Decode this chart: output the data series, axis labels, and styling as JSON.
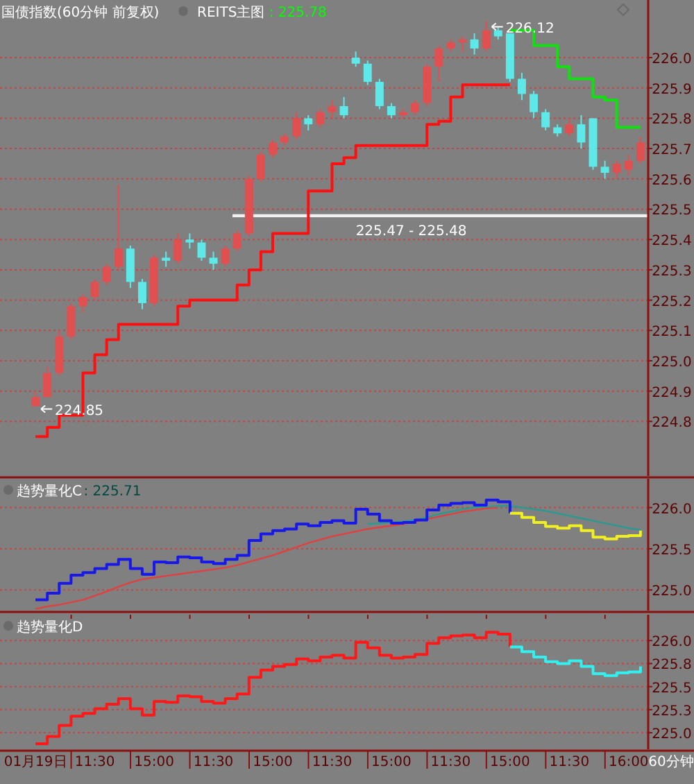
{
  "chart_data": [
    {
      "type": "candlestick",
      "title": "国债指数(60分钟 前复权)",
      "subtitle": "REITS主图",
      "categories": [
        null,
        null,
        null,
        null,
        null,
        null,
        null,
        null,
        null,
        null,
        null,
        null,
        null,
        null,
        null,
        null,
        null,
        null,
        null,
        null,
        null,
        null,
        null,
        null,
        null,
        null,
        null,
        null,
        null,
        null,
        null,
        null,
        null,
        null,
        null,
        null,
        null,
        null,
        null,
        null,
        null,
        null,
        null,
        null,
        null,
        null,
        null,
        null,
        null,
        null,
        null,
        null
      ],
      "ohlc": [
        [
          224.85,
          224.9,
          224.85,
          224.88
        ],
        [
          224.88,
          224.98,
          224.88,
          224.96
        ],
        [
          224.96,
          225.1,
          224.95,
          225.08
        ],
        [
          225.08,
          225.19,
          225.07,
          225.18
        ],
        [
          225.18,
          225.22,
          225.16,
          225.21
        ],
        [
          225.21,
          225.27,
          225.2,
          225.26
        ],
        [
          225.26,
          225.32,
          225.25,
          225.31
        ],
        [
          225.31,
          225.58,
          225.3,
          225.37
        ],
        [
          225.37,
          225.38,
          225.24,
          225.26
        ],
        [
          225.26,
          225.27,
          225.17,
          225.19
        ],
        [
          225.19,
          225.35,
          225.18,
          225.34
        ],
        [
          225.34,
          225.36,
          225.31,
          225.33
        ],
        [
          225.33,
          225.42,
          225.32,
          225.4
        ],
        [
          225.4,
          225.42,
          225.37,
          225.39
        ],
        [
          225.39,
          225.4,
          225.33,
          225.34
        ],
        [
          225.34,
          225.36,
          225.3,
          225.32
        ],
        [
          225.32,
          225.38,
          225.31,
          225.37
        ],
        [
          225.37,
          225.43,
          225.36,
          225.42
        ],
        [
          225.42,
          225.61,
          225.41,
          225.6
        ],
        [
          225.6,
          225.69,
          225.59,
          225.68
        ],
        [
          225.68,
          225.73,
          225.67,
          225.72
        ],
        [
          225.72,
          225.75,
          225.71,
          225.74
        ],
        [
          225.74,
          225.82,
          225.73,
          225.8
        ],
        [
          225.8,
          225.81,
          225.76,
          225.78
        ],
        [
          225.78,
          225.83,
          225.77,
          225.82
        ],
        [
          225.82,
          225.86,
          225.8,
          225.84
        ],
        [
          225.84,
          225.87,
          225.8,
          225.81
        ],
        [
          226.0,
          226.02,
          225.97,
          225.98
        ],
        [
          225.98,
          225.99,
          225.91,
          225.92
        ],
        [
          225.92,
          225.93,
          225.83,
          225.84
        ],
        [
          225.84,
          225.85,
          225.8,
          225.81
        ],
        [
          225.81,
          225.83,
          225.8,
          225.82
        ],
        [
          225.82,
          225.86,
          225.81,
          225.85
        ],
        [
          225.85,
          225.98,
          225.84,
          225.97
        ],
        [
          225.97,
          226.04,
          225.92,
          226.03
        ],
        [
          226.03,
          226.06,
          226.02,
          226.05
        ],
        [
          226.05,
          226.07,
          226.02,
          226.06
        ],
        [
          226.06,
          226.08,
          226.01,
          226.03
        ],
        [
          226.03,
          226.12,
          226.02,
          226.09
        ],
        [
          226.09,
          226.1,
          226.06,
          226.07
        ],
        [
          226.08,
          226.08,
          225.92,
          225.93
        ],
        [
          225.93,
          225.95,
          225.86,
          225.88
        ],
        [
          225.88,
          225.89,
          225.8,
          225.82
        ],
        [
          225.82,
          225.83,
          225.76,
          225.77
        ],
        [
          225.77,
          225.78,
          225.74,
          225.75
        ],
        [
          225.75,
          225.8,
          225.74,
          225.78
        ],
        [
          225.78,
          225.81,
          225.7,
          225.72
        ],
        [
          225.8,
          225.8,
          225.63,
          225.64
        ],
        [
          225.64,
          225.66,
          225.6,
          225.62
        ],
        [
          225.62,
          225.66,
          225.6,
          225.65
        ],
        [
          225.63,
          225.68,
          225.61,
          225.66
        ],
        [
          225.66,
          225.74,
          225.65,
          225.72
        ]
      ],
      "colors": [
        "#e05050",
        "#e05050",
        "#e05050",
        "#e05050",
        "#e05050",
        "#e05050",
        "#e05050",
        "#e05050",
        "#5ee8e8",
        "#5ee8e8",
        "#e05050",
        "#5ee8e8",
        "#e05050",
        "#5ee8e8",
        "#5ee8e8",
        "#5ee8e8",
        "#e05050",
        "#e05050",
        "#e05050",
        "#e05050",
        "#e05050",
        "#e05050",
        "#e05050",
        "#5ee8e8",
        "#e05050",
        "#e05050",
        "#5ee8e8",
        "#5ee8e8",
        "#5ee8e8",
        "#5ee8e8",
        "#5ee8e8",
        "#e05050",
        "#e05050",
        "#e05050",
        "#e05050",
        "#e05050",
        "#e05050",
        "#5ee8e8",
        "#e05050",
        "#5ee8e8",
        "#5ee8e8",
        "#5ee8e8",
        "#5ee8e8",
        "#5ee8e8",
        "#5ee8e8",
        "#e05050",
        "#5ee8e8",
        "#5ee8e8",
        "#5ee8e8",
        "#e05050",
        "#e05050",
        "#e05050"
      ],
      "series": [
        {
          "type": "step",
          "color": "#ff1010",
          "values": [
            224.75,
            224.78,
            224.82,
            224.82,
            224.96,
            225.02,
            225.07,
            225.12,
            225.12,
            225.12,
            225.12,
            225.12,
            225.18,
            225.2,
            225.2,
            225.2,
            225.2,
            225.25,
            225.3,
            225.36,
            225.42,
            225.42,
            225.42,
            225.56,
            225.56,
            225.65,
            225.67,
            225.71,
            225.71,
            225.71,
            225.71,
            225.71,
            225.71,
            225.78,
            225.79,
            225.87,
            225.91,
            225.91,
            225.91,
            225.91,
            225.91,
            null,
            null,
            null,
            null,
            null,
            null,
            null,
            null,
            null,
            null,
            null
          ]
        },
        {
          "type": "step",
          "color": "#10e010",
          "values": [
            null,
            null,
            null,
            null,
            null,
            null,
            null,
            null,
            null,
            null,
            null,
            null,
            null,
            null,
            null,
            null,
            null,
            null,
            null,
            null,
            null,
            null,
            null,
            null,
            null,
            null,
            null,
            null,
            null,
            null,
            null,
            null,
            null,
            null,
            null,
            null,
            null,
            null,
            null,
            null,
            226.09,
            226.09,
            226.04,
            226.04,
            225.97,
            225.93,
            225.93,
            225.87,
            225.86,
            225.77,
            225.77,
            225.77
          ]
        }
      ],
      "ylim": [
        224.62,
        226.19
      ],
      "yticks": [
        224.8,
        224.9,
        {
          "value": 225,
          "label": "225.0"
        },
        225.1,
        225.2,
        225.3,
        225.4,
        225.5,
        225.6,
        225.7,
        225.8,
        225.9,
        {
          "value": 226,
          "label": "226.0"
        }
      ],
      "grid": "y",
      "tick_labels": "y",
      "bands": [
        {
          "axis": "y",
          "from": 225.47,
          "to": 225.48,
          "label": "225.47 - 225.48",
          "color": "#f0f0f0"
        }
      ],
      "annotations": [
        ": 225.78",
        "226.12",
        "224.85"
      ]
    },
    {
      "type": "line",
      "title": "趋势量化C",
      "categories": [
        null,
        null,
        null,
        null,
        null,
        null,
        null,
        null,
        null,
        null,
        null,
        null,
        null,
        null,
        null,
        null,
        null,
        null,
        null,
        null,
        null,
        null,
        null,
        null,
        null,
        null,
        null,
        null,
        null,
        null,
        null,
        null,
        null,
        null,
        null,
        null,
        null,
        null,
        null,
        null,
        null,
        null,
        null,
        null,
        null,
        null,
        null,
        null,
        null,
        null,
        null,
        null
      ],
      "series": [
        {
          "type": "line",
          "color": "#e04040",
          "values": [
            224.77,
            224.8,
            224.82,
            224.85,
            224.88,
            224.93,
            224.98,
            225.04,
            225.09,
            225.13,
            225.15,
            225.17,
            225.19,
            225.21,
            225.23,
            225.25,
            225.27,
            225.3,
            225.34,
            225.38,
            225.42,
            225.47,
            225.52,
            225.57,
            225.61,
            225.65,
            225.68,
            225.71,
            225.74,
            225.76,
            225.78,
            225.8,
            225.83,
            225.86,
            225.89,
            225.92,
            225.95,
            225.97,
            225.99,
            226.0,
            null,
            null,
            null,
            null,
            null,
            null,
            null,
            null,
            null,
            null,
            null,
            null
          ]
        },
        {
          "type": "line",
          "color": "#2a9a90",
          "values": [
            null,
            null,
            null,
            null,
            null,
            null,
            null,
            null,
            null,
            null,
            null,
            null,
            null,
            null,
            null,
            null,
            null,
            null,
            null,
            null,
            null,
            null,
            null,
            null,
            null,
            null,
            null,
            null,
            225.8,
            225.81,
            225.82,
            225.83,
            225.85,
            225.88,
            225.92,
            225.95,
            225.98,
            226.0,
            226.01,
            226.02,
            226.02,
            226.0,
            225.98,
            225.96,
            225.93,
            225.9,
            225.87,
            225.84,
            225.81,
            225.78,
            225.75,
            225.73
          ]
        },
        {
          "type": "step",
          "color": "#1818e8",
          "values": [
            224.88,
            224.96,
            225.08,
            225.18,
            225.21,
            225.26,
            225.31,
            225.37,
            225.26,
            225.19,
            225.34,
            225.33,
            225.4,
            225.39,
            225.34,
            225.32,
            225.37,
            225.42,
            225.6,
            225.68,
            225.72,
            225.74,
            225.8,
            225.78,
            225.82,
            225.84,
            225.81,
            225.98,
            225.92,
            225.84,
            225.81,
            225.82,
            225.85,
            225.97,
            226.03,
            226.05,
            226.06,
            226.03,
            226.09,
            226.07,
            225.93,
            null,
            null,
            null,
            null,
            null,
            null,
            null,
            null,
            null,
            null,
            null
          ]
        },
        {
          "type": "step",
          "color": "#f0f020",
          "values": [
            null,
            null,
            null,
            null,
            null,
            null,
            null,
            null,
            null,
            null,
            null,
            null,
            null,
            null,
            null,
            null,
            null,
            null,
            null,
            null,
            null,
            null,
            null,
            null,
            null,
            null,
            null,
            null,
            null,
            null,
            null,
            null,
            null,
            null,
            null,
            null,
            null,
            null,
            null,
            null,
            225.93,
            225.88,
            225.82,
            225.77,
            225.75,
            225.78,
            225.72,
            225.64,
            225.62,
            225.65,
            225.66,
            225.72
          ]
        }
      ],
      "ylim": [
        224.75,
        226.35
      ],
      "yticks": [
        {
          "value": 225,
          "label": "225.0"
        },
        225.5,
        {
          "value": 226,
          "label": "226.0"
        }
      ],
      "grid": "y",
      "tick_labels": "y",
      "annotations": [
        ": 225.71"
      ]
    },
    {
      "type": "line",
      "title": "趋势量化D",
      "categories": [
        "01月19日",
        null,
        null,
        null,
        null,
        "11:30",
        null,
        null,
        null,
        null,
        "15:00",
        null,
        null,
        null,
        null,
        "11:30",
        null,
        null,
        null,
        null,
        "15:00",
        null,
        null,
        null,
        null,
        "11:30",
        null,
        null,
        null,
        null,
        "15:00",
        null,
        null,
        null,
        null,
        "11:30",
        null,
        null,
        null,
        null,
        "15:00",
        null,
        null,
        null,
        null,
        "11:30",
        null,
        null,
        null,
        null,
        "16:00",
        null
      ],
      "series": [
        {
          "type": "step",
          "color": "#ff1818",
          "values": [
            224.88,
            224.96,
            225.08,
            225.18,
            225.21,
            225.26,
            225.31,
            225.37,
            225.26,
            225.19,
            225.34,
            225.33,
            225.4,
            225.39,
            225.34,
            225.32,
            225.37,
            225.42,
            225.6,
            225.68,
            225.72,
            225.74,
            225.8,
            225.78,
            225.82,
            225.84,
            225.81,
            225.98,
            225.92,
            225.84,
            225.81,
            225.82,
            225.85,
            225.97,
            226.03,
            226.05,
            226.06,
            226.03,
            226.09,
            226.07,
            225.93,
            null,
            null,
            null,
            null,
            null,
            null,
            null,
            null,
            null,
            null,
            null
          ]
        },
        {
          "type": "step",
          "color": "#30f0f0",
          "values": [
            null,
            null,
            null,
            null,
            null,
            null,
            null,
            null,
            null,
            null,
            null,
            null,
            null,
            null,
            null,
            null,
            null,
            null,
            null,
            null,
            null,
            null,
            null,
            null,
            null,
            null,
            null,
            null,
            null,
            null,
            null,
            null,
            null,
            null,
            null,
            null,
            null,
            null,
            null,
            null,
            225.93,
            225.88,
            225.82,
            225.77,
            225.75,
            225.78,
            225.72,
            225.64,
            225.62,
            225.65,
            225.66,
            225.72
          ]
        }
      ],
      "ylim": [
        224.82,
        226.28
      ],
      "yticks": [
        {
          "value": 225,
          "label": "225.0"
        },
        {
          "value": 225.25,
          "label": "225.3"
        },
        225.5,
        {
          "value": 225.75,
          "label": "225.8"
        },
        {
          "value": 226,
          "label": "226.0"
        }
      ],
      "grid": "y",
      "annotations": [
        "60分钟"
      ]
    }
  ]
}
